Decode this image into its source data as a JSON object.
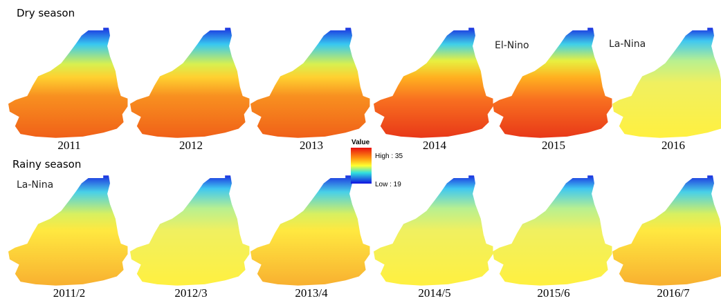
{
  "rows": [
    {
      "label": "Dry season",
      "maps": [
        {
          "caption": "2011"
        },
        {
          "caption": "2012"
        },
        {
          "caption": "2013"
        },
        {
          "caption": "2014"
        },
        {
          "caption": "2015",
          "note": "El-Nino"
        },
        {
          "caption": "2016",
          "note": "La-Nina"
        }
      ]
    },
    {
      "label": "Rainy season",
      "maps": [
        {
          "caption": "2011/2",
          "note": "La-Nina"
        },
        {
          "caption": "2012/3"
        },
        {
          "caption": "2013/4"
        },
        {
          "caption": "2014/5"
        },
        {
          "caption": "2015/6"
        },
        {
          "caption": "2016/7"
        }
      ]
    }
  ],
  "legend": {
    "title": "Value",
    "high": "High : 35",
    "low": "Low : 19"
  }
}
